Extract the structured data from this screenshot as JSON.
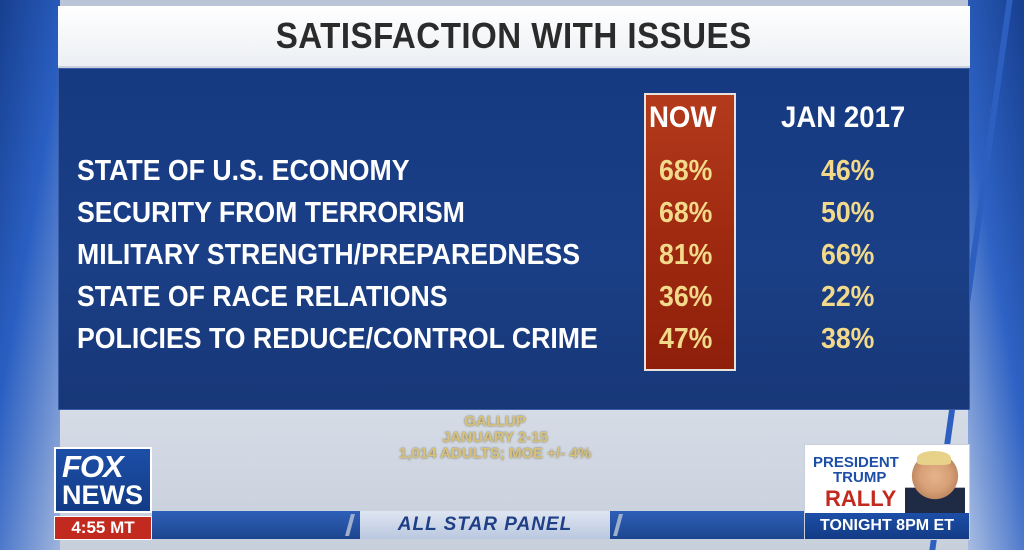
{
  "title": "SATISFACTION WITH ISSUES",
  "columns": {
    "now": "NOW",
    "previous": "JAN 2017"
  },
  "rows": [
    {
      "label": "STATE OF U.S. ECONOMY",
      "now": "68%",
      "previous": "46%"
    },
    {
      "label": "SECURITY FROM TERRORISM",
      "now": "68%",
      "previous": "50%"
    },
    {
      "label": "MILITARY STRENGTH/PREPAREDNESS",
      "now": "81%",
      "previous": "66%"
    },
    {
      "label": "STATE OF RACE RELATIONS",
      "now": "36%",
      "previous": "22%"
    },
    {
      "label": "POLICIES TO REDUCE/CONTROL CRIME",
      "now": "47%",
      "previous": "38%"
    }
  ],
  "source": {
    "line1": "GALLUP",
    "line2": "JANUARY 2-15",
    "line3": "1,014 ADULTS; MOE +/- 4%"
  },
  "logo": {
    "line1": "FOX",
    "line2": "NEWS"
  },
  "clock": "4:55 MT",
  "ticker": {
    "label": "ALL STAR PANEL"
  },
  "promo": {
    "line1": "PRESIDENT",
    "line2": "TRUMP",
    "line3": "RALLY",
    "footer": "TONIGHT 8PM ET"
  },
  "colors": {
    "panel_blue": "#163a82",
    "now_highlight": "#a02a10",
    "value_yellow": "#f3d98a",
    "fox_red": "#c32a1f"
  }
}
